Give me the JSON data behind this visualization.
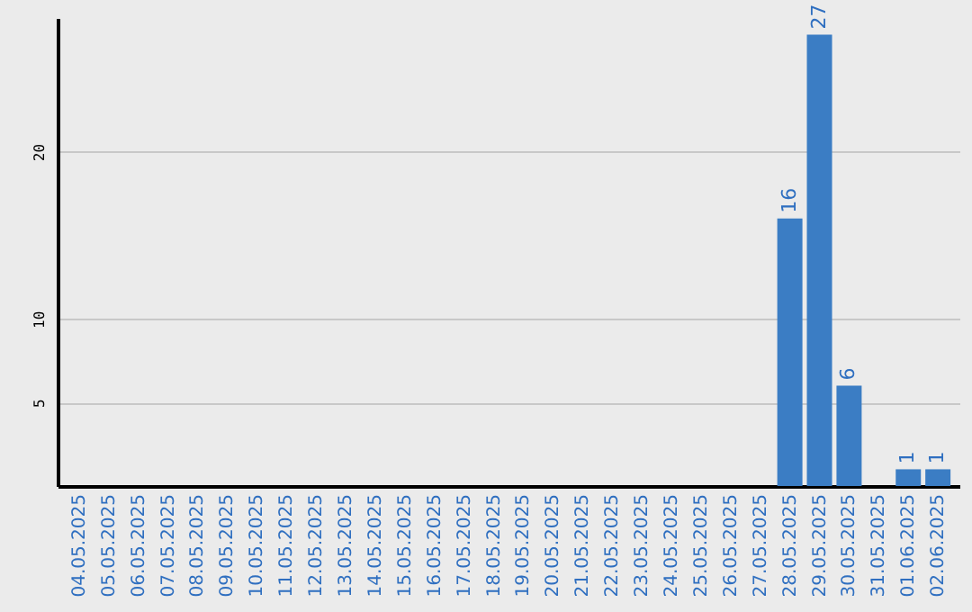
{
  "chart_data": {
    "type": "bar",
    "categories": [
      "04.05.2025",
      "05.05.2025",
      "06.05.2025",
      "07.05.2025",
      "08.05.2025",
      "09.05.2025",
      "10.05.2025",
      "11.05.2025",
      "12.05.2025",
      "13.05.2025",
      "14.05.2025",
      "15.05.2025",
      "16.05.2025",
      "17.05.2025",
      "18.05.2025",
      "19.05.2025",
      "20.05.2025",
      "21.05.2025",
      "22.05.2025",
      "23.05.2025",
      "24.05.2025",
      "25.05.2025",
      "26.05.2025",
      "27.05.2025",
      "28.05.2025",
      "29.05.2025",
      "30.05.2025",
      "31.05.2025",
      "01.06.2025",
      "02.06.2025"
    ],
    "values": [
      0,
      0,
      0,
      0,
      0,
      0,
      0,
      0,
      0,
      0,
      0,
      0,
      0,
      0,
      0,
      0,
      0,
      0,
      0,
      0,
      0,
      0,
      0,
      0,
      16,
      27,
      6,
      0,
      1,
      1
    ],
    "value_labels": [
      null,
      null,
      null,
      null,
      null,
      null,
      null,
      null,
      null,
      null,
      null,
      null,
      null,
      null,
      null,
      null,
      null,
      null,
      null,
      null,
      null,
      null,
      null,
      null,
      "16",
      "27",
      "6",
      null,
      "1",
      "1"
    ],
    "color": "#3b7dc4",
    "ylim": [
      0,
      28
    ],
    "yticks": [
      5,
      10,
      20
    ],
    "grid": "y"
  }
}
